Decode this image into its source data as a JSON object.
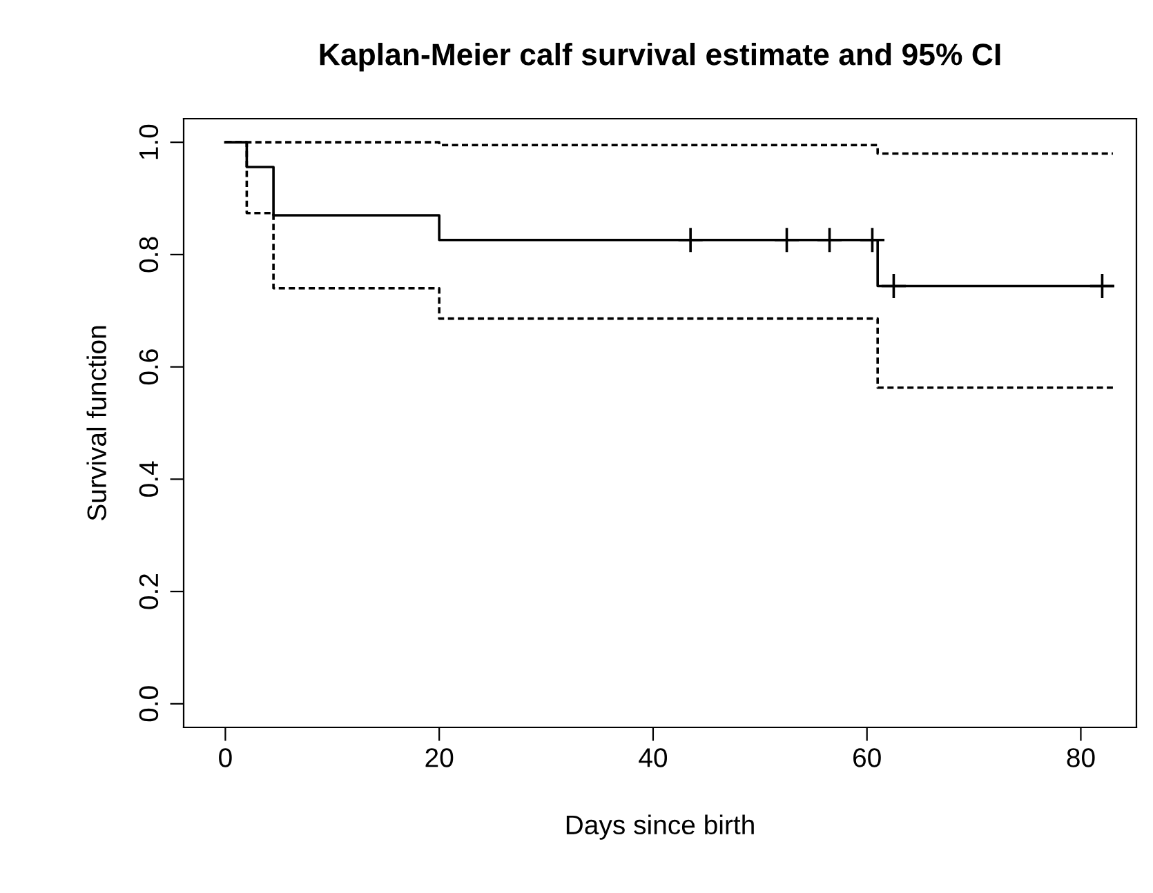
{
  "chart_data": {
    "type": "step",
    "title": "Kaplan-Meier calf survival estimate and 95% CI",
    "xlabel": "Days since birth",
    "ylabel": "Survival function",
    "xlim": [
      -3.9,
      85.2
    ],
    "ylim": [
      -0.042,
      1.042
    ],
    "xticks": [
      0,
      20,
      40,
      60,
      80
    ],
    "yticks": [
      {
        "value": 0,
        "label": "0.0"
      },
      0.2,
      0.4,
      0.6,
      0.8,
      {
        "value": 1,
        "label": "1.0"
      }
    ],
    "grid": false,
    "legend": false,
    "series": [
      {
        "color": "#000000",
        "line_style": "solid",
        "x": [
          0,
          2,
          4.5,
          20,
          61,
          83
        ],
        "values": [
          1.0,
          0.956,
          0.87,
          0.826,
          0.744,
          0.744
        ]
      },
      {
        "color": "#000000",
        "line_style": "dashed",
        "x": [
          0,
          20,
          61,
          83
        ],
        "values": [
          1.0,
          0.995,
          0.98,
          0.98
        ]
      },
      {
        "color": "#000000",
        "line_style": "dashed",
        "x": [
          0,
          2,
          4.5,
          20,
          61,
          83
        ],
        "values": [
          1.0,
          0.874,
          0.74,
          0.686,
          0.563,
          0.563
        ]
      },
      {
        "type": "scatter",
        "color": "#000000",
        "marker": "cross",
        "x": [
          43.5,
          52.5,
          56.5,
          60.5,
          62.5,
          82
        ],
        "values": [
          0.826,
          0.826,
          0.826,
          0.826,
          0.744,
          0.744
        ]
      }
    ]
  }
}
